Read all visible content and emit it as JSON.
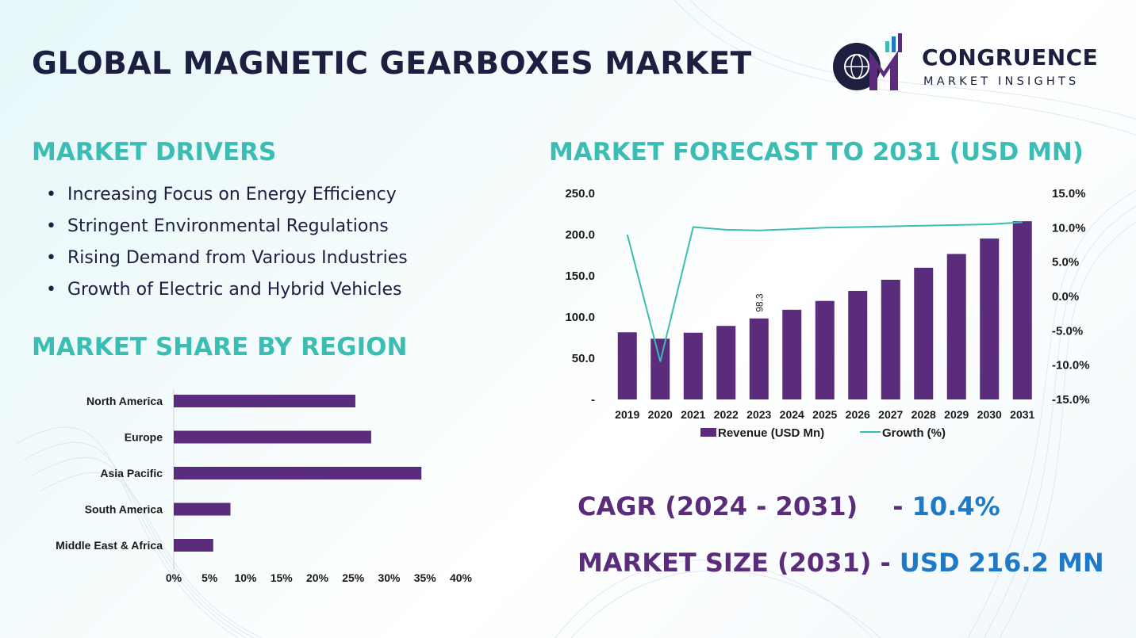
{
  "title": "GLOBAL MAGNETIC GEARBOXES MARKET",
  "logo": {
    "name": "CONGRUENCE",
    "sub": "MARKET INSIGHTS",
    "mark": "CM"
  },
  "drivers": {
    "heading": "MARKET DRIVERS",
    "items": [
      "Increasing Focus on Energy Efficiency",
      "Stringent Environmental  Regulations",
      "Rising Demand from Various Industries",
      "Growth of Electric and Hybrid Vehicles"
    ]
  },
  "region": {
    "heading": "MARKET SHARE BY REGION"
  },
  "forecast": {
    "heading": "MARKET FORECAST TO 2031 (USD MN)"
  },
  "colors": {
    "bar": "#5b2c7c",
    "line": "#3bbdb4",
    "heading": "#3bbdb4",
    "title": "#1c1f3f",
    "value": "#1f7ac6"
  },
  "chart_data": [
    {
      "type": "bar",
      "orientation": "horizontal",
      "categories": [
        "North America",
        "Europe",
        "Asia Pacific",
        "South America",
        "Middle East & Africa"
      ],
      "values": [
        25.3,
        27.5,
        34.5,
        7.9,
        5.5
      ],
      "xlim": [
        0,
        40
      ],
      "xticks": [
        "0%",
        "5%",
        "10%",
        "15%",
        "20%",
        "25%",
        "30%",
        "35%",
        "40%"
      ],
      "grid": false
    },
    {
      "type": "bar",
      "combo_line": true,
      "categories": [
        "2019",
        "2020",
        "2021",
        "2022",
        "2023",
        "2024",
        "2025",
        "2026",
        "2027",
        "2028",
        "2029",
        "2030",
        "2031"
      ],
      "series": [
        {
          "name": "Revenue (USD Mn)",
          "kind": "bar",
          "axis": "left",
          "values": [
            81.5,
            73.7,
            81.0,
            89.2,
            98.3,
            108.8,
            119.5,
            131.7,
            145.2,
            159.8,
            176.5,
            195.3,
            216.2
          ]
        },
        {
          "name": "Growth (%)",
          "kind": "line",
          "axis": "right",
          "values": [
            9.0,
            -9.5,
            10.1,
            9.7,
            9.6,
            9.8,
            10.0,
            10.1,
            10.2,
            10.3,
            10.4,
            10.5,
            10.8
          ]
        }
      ],
      "data_labels": [
        {
          "category": "2023",
          "text": "98.3"
        }
      ],
      "ylim": [
        0,
        250
      ],
      "yticks": [
        "-",
        "50.0",
        "100.0",
        "150.0",
        "200.0",
        "250.0"
      ],
      "y2lim": [
        -15,
        15
      ],
      "y2ticks": [
        "-15.0%",
        "-10.0%",
        "-5.0%",
        "0.0%",
        "5.0%",
        "10.0%",
        "15.0%"
      ],
      "legend": "bottom",
      "grid": false
    }
  ],
  "cagr": {
    "label": "CAGR (2024 - 2031)",
    "sep": "- ",
    "value": "10.4%"
  },
  "size": {
    "label": "MARKET SIZE (2031)",
    "sep": " - ",
    "value": "USD  216.2 MN"
  }
}
